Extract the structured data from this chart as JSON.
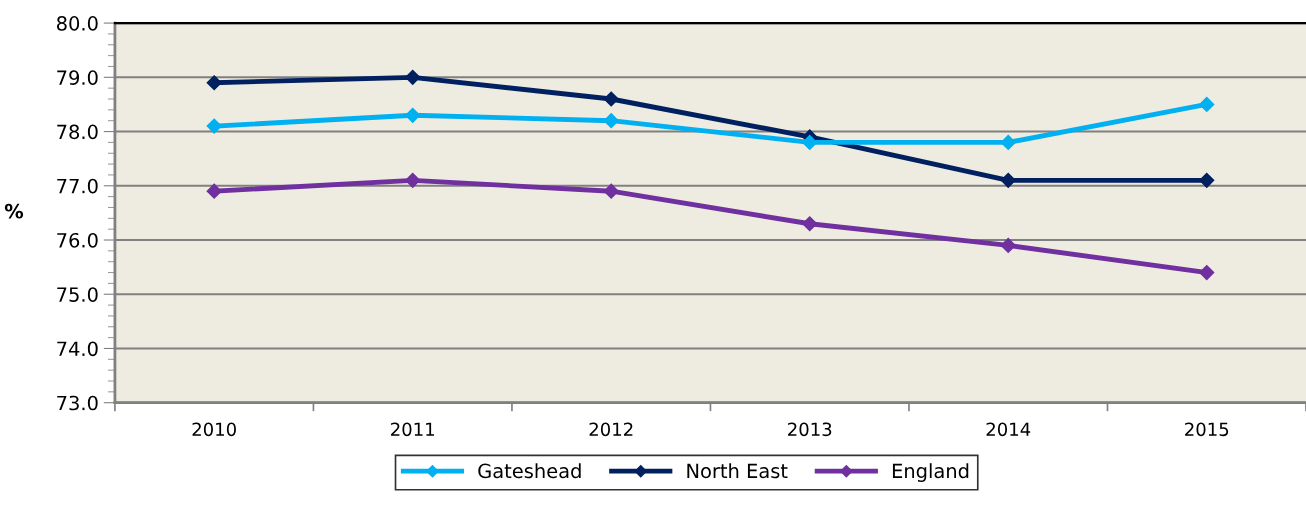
{
  "chart_data": {
    "type": "line",
    "ylabel": "%",
    "categories": [
      "2010",
      "2011",
      "2012",
      "2013",
      "2014",
      "2015"
    ],
    "series": [
      {
        "name": "Gateshead",
        "color": "#00b0f0",
        "values": [
          78.1,
          78.3,
          78.2,
          77.8,
          77.8,
          78.5
        ]
      },
      {
        "name": "North East",
        "color": "#002060",
        "values": [
          78.9,
          79.0,
          78.6,
          77.9,
          77.1,
          77.1
        ]
      },
      {
        "name": "England",
        "color": "#7030a0",
        "values": [
          76.9,
          77.1,
          76.9,
          76.3,
          75.9,
          75.4
        ]
      }
    ],
    "ylim": [
      73.0,
      80.0
    ],
    "yticks": [
      {
        "value": 73,
        "label": "73.0"
      },
      {
        "value": 74,
        "label": "74.0"
      },
      {
        "value": 75,
        "label": "75.0"
      },
      {
        "value": 76,
        "label": "76.0"
      },
      {
        "value": 77,
        "label": "77.0"
      },
      {
        "value": 78,
        "label": "78.0"
      },
      {
        "value": 79,
        "label": "79.0"
      },
      {
        "value": 80,
        "label": "80.0"
      }
    ],
    "grid": "y",
    "legend": "bottom",
    "marker": "diamond",
    "line_style": "solid"
  }
}
